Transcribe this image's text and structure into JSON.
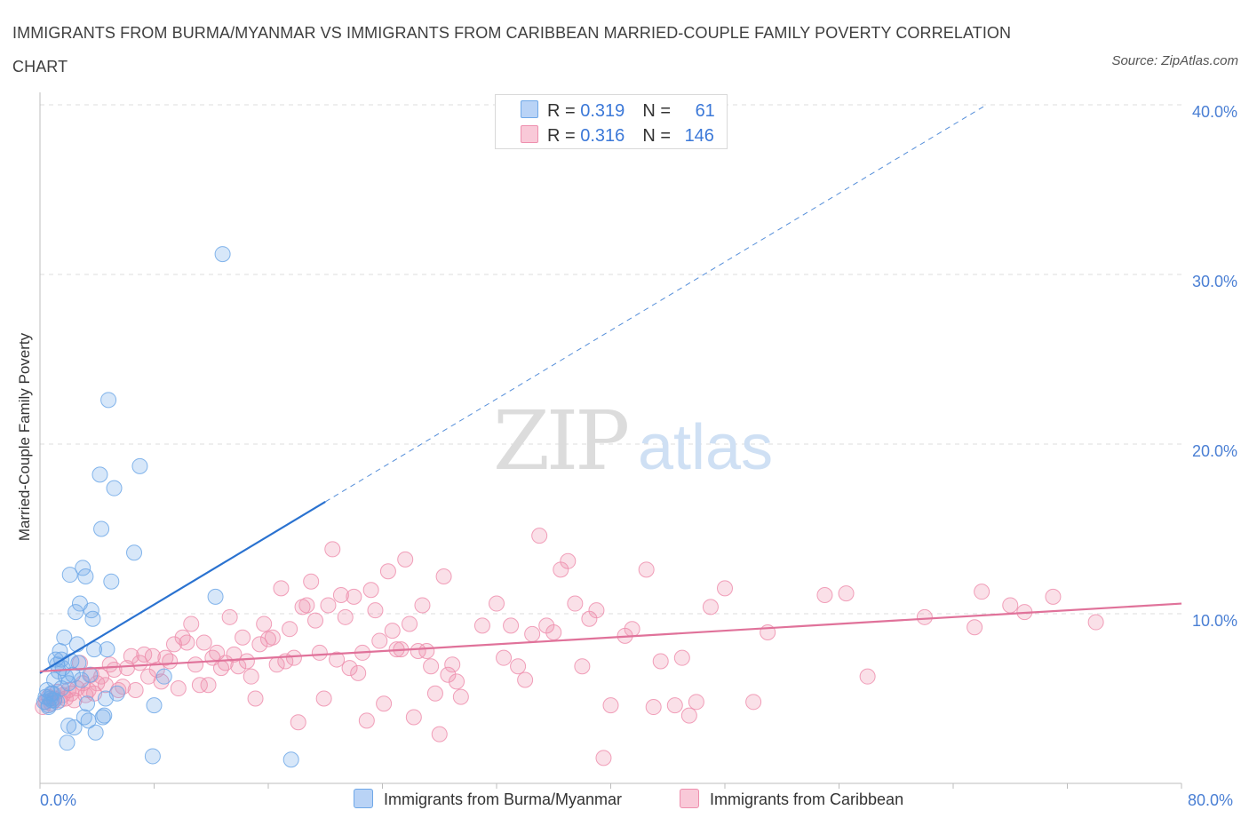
{
  "title": "IMMIGRANTS FROM BURMA/MYANMAR VS IMMIGRANTS FROM CARIBBEAN MARRIED-COUPLE FAMILY POVERTY CORRELATION CHART",
  "source": "Source: ZipAtlas.com",
  "watermark": {
    "zip": "ZIP",
    "atlas": "atlas"
  },
  "legend": {
    "rows": [
      {
        "r_label": "R = ",
        "r_value": "0.319",
        "n_label": "N = ",
        "n_value": "61"
      },
      {
        "r_label": "R = ",
        "r_value": "0.316",
        "n_label": "N = ",
        "n_value": "146"
      }
    ]
  },
  "chart_data": {
    "type": "scatter",
    "title": "IMMIGRANTS FROM BURMA/MYANMAR VS IMMIGRANTS FROM CARIBBEAN MARRIED-COUPLE FAMILY POVERTY CORRELATION CHART",
    "ylabel": "Married-Couple Family Poverty",
    "xlabel": "",
    "xlim": [
      0,
      80
    ],
    "ylim": [
      0,
      40
    ],
    "x_tick_labels": [
      "0.0%",
      "80.0%"
    ],
    "y_tick_labels": [
      "10.0%",
      "20.0%",
      "30.0%",
      "40.0%"
    ],
    "y_ticks": [
      10,
      20,
      30,
      40
    ],
    "grid": true,
    "legend_position": "top-center",
    "colors": {
      "burma": "#6fa8e8",
      "caribbean": "#ee8fae",
      "burma_line": "#2a72d0",
      "caribbean_line": "#e0729a"
    },
    "series": [
      {
        "name": "Immigrants from Burma/Myanmar",
        "R": 0.319,
        "N": 61,
        "trend": {
          "x0": 0,
          "y0": 6.5,
          "x1": 20,
          "y1": 16.6,
          "dash_to_x": 80
        },
        "points": [
          [
            0.3,
            4.8
          ],
          [
            0.4,
            5.1
          ],
          [
            0.5,
            5.5
          ],
          [
            0.6,
            4.6
          ],
          [
            0.7,
            5.0
          ],
          [
            0.8,
            4.9
          ],
          [
            0.9,
            5.3
          ],
          [
            1.0,
            6.1
          ],
          [
            1.1,
            7.3
          ],
          [
            1.2,
            7.0
          ],
          [
            1.3,
            6.6
          ],
          [
            1.4,
            7.8
          ],
          [
            1.5,
            5.6
          ],
          [
            1.6,
            6.8
          ],
          [
            1.7,
            8.6
          ],
          [
            1.8,
            6.3
          ],
          [
            1.9,
            2.4
          ],
          [
            2.0,
            3.4
          ],
          [
            2.1,
            12.3
          ],
          [
            2.2,
            7.2
          ],
          [
            2.3,
            6.4
          ],
          [
            2.4,
            3.3
          ],
          [
            2.5,
            10.1
          ],
          [
            2.6,
            8.2
          ],
          [
            2.7,
            7.1
          ],
          [
            2.8,
            10.6
          ],
          [
            2.9,
            6.1
          ],
          [
            3.0,
            12.7
          ],
          [
            3.1,
            3.9
          ],
          [
            3.2,
            12.2
          ],
          [
            3.3,
            4.7
          ],
          [
            3.4,
            3.7
          ],
          [
            3.5,
            6.4
          ],
          [
            3.6,
            10.2
          ],
          [
            3.7,
            9.7
          ],
          [
            3.8,
            7.9
          ],
          [
            3.9,
            3.0
          ],
          [
            4.2,
            18.2
          ],
          [
            4.3,
            15.0
          ],
          [
            4.4,
            3.9
          ],
          [
            4.5,
            4.0
          ],
          [
            4.6,
            5.0
          ],
          [
            4.7,
            7.9
          ],
          [
            4.8,
            22.6
          ],
          [
            5.0,
            11.9
          ],
          [
            5.2,
            17.4
          ],
          [
            5.4,
            5.3
          ],
          [
            6.6,
            13.6
          ],
          [
            7.0,
            18.7
          ],
          [
            8.0,
            4.6
          ],
          [
            7.9,
            1.6
          ],
          [
            8.7,
            6.3
          ],
          [
            12.3,
            11.0
          ],
          [
            12.8,
            31.2
          ],
          [
            17.6,
            1.4
          ],
          [
            1.0,
            4.9
          ],
          [
            0.6,
            4.5
          ],
          [
            1.5,
            7.3
          ],
          [
            2.0,
            5.9
          ],
          [
            0.8,
            5.3
          ],
          [
            1.2,
            4.8
          ]
        ]
      },
      {
        "name": "Immigrants from Caribbean",
        "R": 0.316,
        "N": 146,
        "trend": {
          "x0": 0,
          "y0": 6.6,
          "x1": 80,
          "y1": 10.6
        },
        "points": [
          [
            0.2,
            4.5
          ],
          [
            0.4,
            4.8
          ],
          [
            0.6,
            5.1
          ],
          [
            0.8,
            4.7
          ],
          [
            1.0,
            5.0
          ],
          [
            1.2,
            5.4
          ],
          [
            1.4,
            4.9
          ],
          [
            1.6,
            5.2
          ],
          [
            1.8,
            5.0
          ],
          [
            2.0,
            5.5
          ],
          [
            2.2,
            5.3
          ],
          [
            2.4,
            4.9
          ],
          [
            2.6,
            5.6
          ],
          [
            2.8,
            7.1
          ],
          [
            3.0,
            5.9
          ],
          [
            3.2,
            5.2
          ],
          [
            3.4,
            5.5
          ],
          [
            3.6,
            6.4
          ],
          [
            3.8,
            5.3
          ],
          [
            4.0,
            5.9
          ],
          [
            4.3,
            6.3
          ],
          [
            4.6,
            5.8
          ],
          [
            4.9,
            7.0
          ],
          [
            5.2,
            6.7
          ],
          [
            5.5,
            5.5
          ],
          [
            5.8,
            5.7
          ],
          [
            6.1,
            6.8
          ],
          [
            6.4,
            7.5
          ],
          [
            6.7,
            5.5
          ],
          [
            7.0,
            7.1
          ],
          [
            7.3,
            7.6
          ],
          [
            7.6,
            6.3
          ],
          [
            7.9,
            7.5
          ],
          [
            8.2,
            6.7
          ],
          [
            8.5,
            6.0
          ],
          [
            8.8,
            7.4
          ],
          [
            9.1,
            7.2
          ],
          [
            9.4,
            8.2
          ],
          [
            9.7,
            5.6
          ],
          [
            10.0,
            8.6
          ],
          [
            10.3,
            8.3
          ],
          [
            10.6,
            9.4
          ],
          [
            10.9,
            7.0
          ],
          [
            11.2,
            5.8
          ],
          [
            11.5,
            8.3
          ],
          [
            11.8,
            5.8
          ],
          [
            12.1,
            7.4
          ],
          [
            12.4,
            7.7
          ],
          [
            12.7,
            6.8
          ],
          [
            13.0,
            7.1
          ],
          [
            13.3,
            9.8
          ],
          [
            13.6,
            7.6
          ],
          [
            13.9,
            6.9
          ],
          [
            14.2,
            8.6
          ],
          [
            14.5,
            7.2
          ],
          [
            14.8,
            6.3
          ],
          [
            15.1,
            5.0
          ],
          [
            15.4,
            8.2
          ],
          [
            15.7,
            9.4
          ],
          [
            16.0,
            8.5
          ],
          [
            16.3,
            8.6
          ],
          [
            16.6,
            7.0
          ],
          [
            16.9,
            11.5
          ],
          [
            17.2,
            7.2
          ],
          [
            17.5,
            9.1
          ],
          [
            17.8,
            7.4
          ],
          [
            18.1,
            3.6
          ],
          [
            18.4,
            10.4
          ],
          [
            18.7,
            10.5
          ],
          [
            19.0,
            11.9
          ],
          [
            19.3,
            9.6
          ],
          [
            19.6,
            7.7
          ],
          [
            19.9,
            5.0
          ],
          [
            20.2,
            10.5
          ],
          [
            20.5,
            13.8
          ],
          [
            20.8,
            7.3
          ],
          [
            21.1,
            11.1
          ],
          [
            21.4,
            9.8
          ],
          [
            21.7,
            6.8
          ],
          [
            22.0,
            11.0
          ],
          [
            22.3,
            6.5
          ],
          [
            22.6,
            7.7
          ],
          [
            22.9,
            3.7
          ],
          [
            23.2,
            11.4
          ],
          [
            23.5,
            10.2
          ],
          [
            23.8,
            8.4
          ],
          [
            24.1,
            4.7
          ],
          [
            24.4,
            12.5
          ],
          [
            24.7,
            9.0
          ],
          [
            25.0,
            7.9
          ],
          [
            25.3,
            7.9
          ],
          [
            25.6,
            13.2
          ],
          [
            25.9,
            9.4
          ],
          [
            26.2,
            3.9
          ],
          [
            26.5,
            7.8
          ],
          [
            26.8,
            10.5
          ],
          [
            27.1,
            7.8
          ],
          [
            27.4,
            6.9
          ],
          [
            27.7,
            5.3
          ],
          [
            28.0,
            2.9
          ],
          [
            28.3,
            12.2
          ],
          [
            28.6,
            6.4
          ],
          [
            28.9,
            7.0
          ],
          [
            29.2,
            6.0
          ],
          [
            29.5,
            5.1
          ],
          [
            31.0,
            9.3
          ],
          [
            32.0,
            10.6
          ],
          [
            32.5,
            7.4
          ],
          [
            33.0,
            9.3
          ],
          [
            33.5,
            6.9
          ],
          [
            34.0,
            6.1
          ],
          [
            34.5,
            8.8
          ],
          [
            35.0,
            14.6
          ],
          [
            35.5,
            9.3
          ],
          [
            36.0,
            8.9
          ],
          [
            36.5,
            12.6
          ],
          [
            37.0,
            13.1
          ],
          [
            37.5,
            10.6
          ],
          [
            38.0,
            6.9
          ],
          [
            38.5,
            9.7
          ],
          [
            39.0,
            10.2
          ],
          [
            39.5,
            1.5
          ],
          [
            40.0,
            4.6
          ],
          [
            41.0,
            8.7
          ],
          [
            41.5,
            9.1
          ],
          [
            42.5,
            12.6
          ],
          [
            43.0,
            4.5
          ],
          [
            43.5,
            7.2
          ],
          [
            44.5,
            4.6
          ],
          [
            45.0,
            7.4
          ],
          [
            45.5,
            4.0
          ],
          [
            46.0,
            4.8
          ],
          [
            47.0,
            10.4
          ],
          [
            48.0,
            11.5
          ],
          [
            50.0,
            4.8
          ],
          [
            51.0,
            8.9
          ],
          [
            55.0,
            11.1
          ],
          [
            56.5,
            11.2
          ],
          [
            58.0,
            6.3
          ],
          [
            62.0,
            9.8
          ],
          [
            65.5,
            9.2
          ],
          [
            66.0,
            11.3
          ],
          [
            68.0,
            10.5
          ],
          [
            69.0,
            10.1
          ],
          [
            71.0,
            11.0
          ],
          [
            74.0,
            9.5
          ]
        ]
      }
    ]
  },
  "bottom_legend": [
    "Immigrants from Burma/Myanmar",
    "Immigrants from Caribbean"
  ]
}
